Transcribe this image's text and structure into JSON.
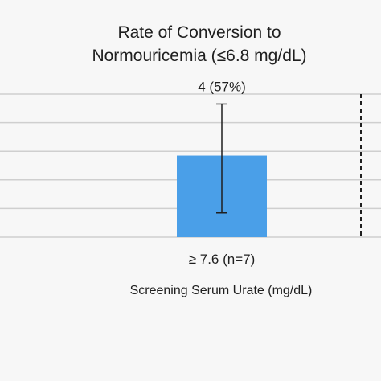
{
  "chart_data": {
    "type": "bar",
    "title_lines": [
      "Rate of Conversion to",
      "Normouricemia (≤6.8 mg/dL)"
    ],
    "xlabel": "Screening Serum Urate (mg/dL)",
    "categories": [
      "≥ 7.6 (n=7)"
    ],
    "values": [
      57
    ],
    "error_low": [
      17
    ],
    "error_high": [
      93
    ],
    "data_labels": [
      "4 (57%)"
    ],
    "ylim": [
      0,
      100
    ],
    "gridlines": [
      20,
      40,
      60,
      80,
      100
    ],
    "grid": true,
    "bar_color": "#4a9fe8",
    "grid_color": "#cfcfcf"
  }
}
